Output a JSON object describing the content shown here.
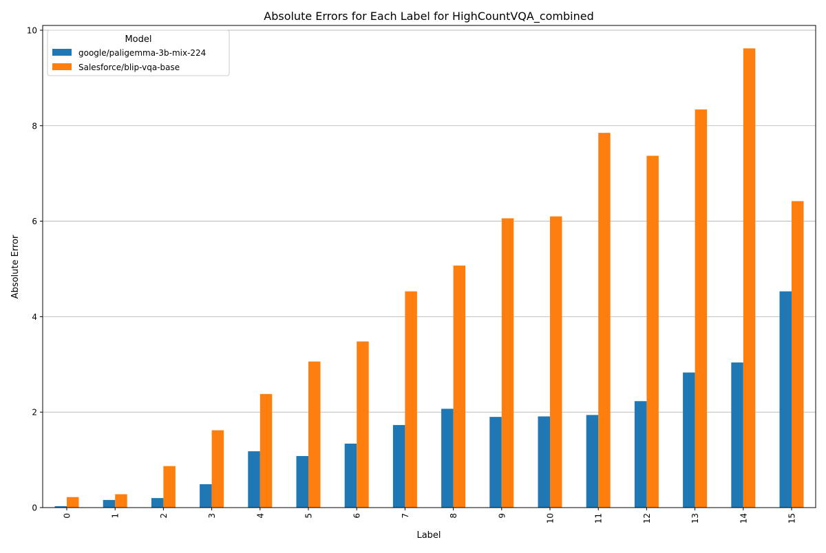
{
  "chart_data": {
    "type": "bar",
    "title": "Absolute Errors for Each Label for HighCountVQA_combined",
    "xlabel": "Label",
    "ylabel": "Absolute Error",
    "categories": [
      "0",
      "1",
      "2",
      "3",
      "4",
      "5",
      "6",
      "7",
      "8",
      "9",
      "10",
      "11",
      "12",
      "13",
      "14",
      "15"
    ],
    "ylim": [
      0,
      10.1
    ],
    "yticks": [
      0,
      2,
      4,
      6,
      8,
      10
    ],
    "ytick_labels": [
      "0",
      "2",
      "4",
      "6",
      "8",
      "10"
    ],
    "grid": "y",
    "legend": {
      "title": "Model",
      "placement": "top-left"
    },
    "series": [
      {
        "name": "google/paligemma-3b-mix-224",
        "color": "#1f77b4",
        "values": [
          0.03,
          0.16,
          0.2,
          0.49,
          1.18,
          1.08,
          1.34,
          1.73,
          2.07,
          1.9,
          1.91,
          1.94,
          2.23,
          2.83,
          3.04,
          4.53
        ]
      },
      {
        "name": "Salesforce/blip-vqa-base",
        "color": "#ff7f0e",
        "values": [
          0.22,
          0.28,
          0.87,
          1.62,
          2.38,
          3.06,
          3.48,
          4.53,
          5.07,
          6.06,
          6.1,
          7.85,
          7.37,
          8.34,
          9.62,
          6.42
        ]
      }
    ]
  }
}
